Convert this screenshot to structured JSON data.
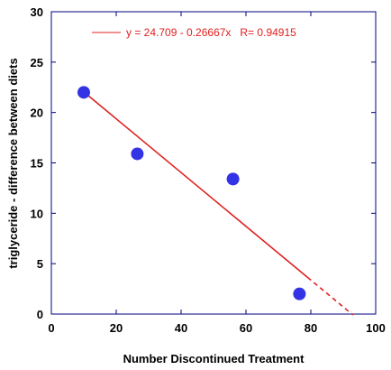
{
  "chart_data": {
    "type": "scatter",
    "xlabel": "Number Discontinued Treatment",
    "ylabel": "triglyceride - difference between diets",
    "xlim": [
      0,
      100
    ],
    "ylim": [
      0,
      30
    ],
    "x_ticks": [
      "0",
      "20",
      "40",
      "60",
      "80",
      "100"
    ],
    "y_ticks": [
      "0",
      "5",
      "10",
      "15",
      "20",
      "25",
      "30"
    ],
    "points": [
      {
        "x": 10,
        "y": 22
      },
      {
        "x": 26.5,
        "y": 15.9
      },
      {
        "x": 56,
        "y": 13.4
      },
      {
        "x": 76.5,
        "y": 2
      }
    ],
    "fit": {
      "intercept": 24.709,
      "slope": -0.26667,
      "x_start": 10,
      "x_solid_end": 79,
      "x_dash_end": 93
    },
    "legend": {
      "label": "y = 24.709 - 0.26667x   R= 0.94915",
      "placement": "top-left"
    },
    "grid": false,
    "colors": {
      "points": "#3333e6",
      "fit_line": "#e02020",
      "axis_frame": "#000080"
    }
  }
}
